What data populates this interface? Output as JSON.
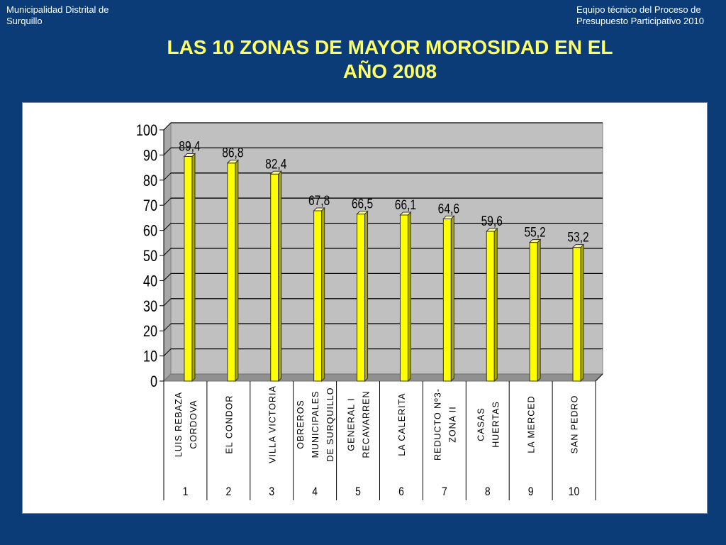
{
  "header": {
    "left_line1": "Municipalidad Distrital de",
    "left_line2": "Surquillo",
    "right_line1": "Equipo técnico del Proceso de",
    "right_line2": "Presupuesto Participativo 2010"
  },
  "title_line1": "LAS 10 ZONAS DE MAYOR MOROSIDAD EN EL",
  "title_line2": "AÑO 2008",
  "colors": {
    "bar": "#ffff00",
    "bar_side": "#a8a800",
    "plot_bg": "#c0c0c0",
    "floor": "#909090"
  },
  "chart_data": {
    "type": "bar",
    "title": "LAS 10 ZONAS DE MAYOR MOROSIDAD EN EL AÑO 2008",
    "xlabel": "",
    "ylabel": "",
    "ylim": [
      0,
      100
    ],
    "yticks": [
      0,
      10,
      20,
      30,
      40,
      50,
      60,
      70,
      80,
      90,
      100
    ],
    "grid": true,
    "legend": "none",
    "categories": [
      {
        "name": [
          "LUIS REBAZA",
          "CORDOVA"
        ],
        "num": "1"
      },
      {
        "name": [
          "EL CONDOR"
        ],
        "num": "2"
      },
      {
        "name": [
          "VILLA VICTORIA"
        ],
        "num": "3"
      },
      {
        "name": [
          "OBREROS",
          "MUNICIPALES",
          "DE SURQUILLO"
        ],
        "num": "4"
      },
      {
        "name": [
          "GENERAL I",
          "RECAVARREN"
        ],
        "num": "5"
      },
      {
        "name": [
          "LA CALERITA"
        ],
        "num": "6"
      },
      {
        "name": [
          "REDUCTO Nº3-",
          "ZONA II"
        ],
        "num": "7"
      },
      {
        "name": [
          "CASAS",
          "HUERTAS"
        ],
        "num": "8"
      },
      {
        "name": [
          "LA MERCED"
        ],
        "num": "9"
      },
      {
        "name": [
          "SAN PEDRO"
        ],
        "num": "10"
      }
    ],
    "values": [
      89.4,
      86.8,
      82.4,
      67.8,
      66.5,
      66.1,
      64.6,
      59.6,
      55.2,
      53.2
    ],
    "data_labels": [
      "89,4",
      "86,8",
      "82,4",
      "67,8",
      "66,5",
      "66,1",
      "64,6",
      "59,6",
      "55,2",
      "53,2"
    ]
  }
}
